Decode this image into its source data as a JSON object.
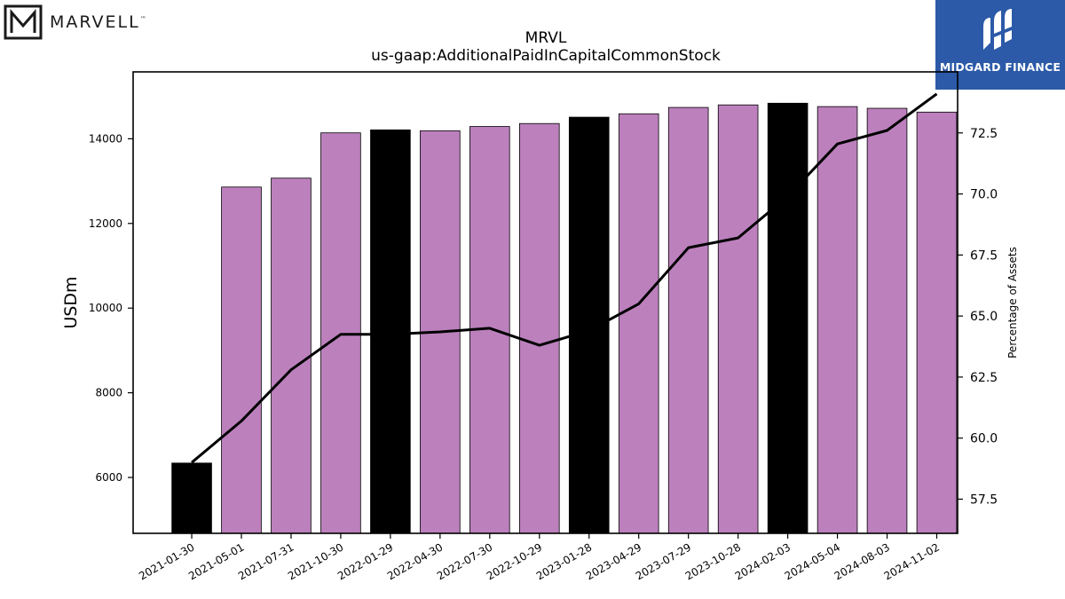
{
  "logos": {
    "left_text": "MARVELL",
    "left_tm": "™",
    "right_text": "MIDGARD FINANCE",
    "right_bg": "#2c5aa8"
  },
  "chart_data": {
    "type": "bar",
    "title": "MRVL",
    "subtitle": "us-gaap:AdditionalPaidInCapitalCommonStock",
    "ylabel": "USDm",
    "y2label": "Percentage of Assets",
    "ylim": [
      4680,
      15580
    ],
    "y2lim": [
      56.1,
      75.0
    ],
    "yticks": [
      6000,
      8000,
      10000,
      12000,
      14000
    ],
    "y2ticks": [
      57.5,
      60.0,
      62.5,
      65.0,
      67.5,
      70.0,
      72.5
    ],
    "grid": false,
    "categories": [
      "2021-01-30",
      "2021-05-01",
      "2021-07-31",
      "2021-10-30",
      "2022-01-29",
      "2022-04-30",
      "2022-07-30",
      "2022-10-29",
      "2023-01-28",
      "2023-04-29",
      "2023-07-29",
      "2023-10-28",
      "2024-02-03",
      "2024-05-04",
      "2024-08-03",
      "2024-11-02"
    ],
    "series": [
      {
        "type": "bar",
        "values": [
          6340,
          12860,
          13070,
          14140,
          14210,
          14190,
          14290,
          14360,
          14510,
          14590,
          14740,
          14800,
          14840,
          14760,
          14720,
          14630
        ],
        "colors": [
          "#000000",
          "#bc80bd",
          "#bc80bd",
          "#bc80bd",
          "#000000",
          "#bc80bd",
          "#bc80bd",
          "#bc80bd",
          "#000000",
          "#bc80bd",
          "#bc80bd",
          "#bc80bd",
          "#000000",
          "#bc80bd",
          "#bc80bd",
          "#bc80bd"
        ]
      },
      {
        "type": "line",
        "axis": "right",
        "color": "#000000",
        "values": [
          59.0,
          60.7,
          62.8,
          64.25,
          64.25,
          64.35,
          64.5,
          63.8,
          64.4,
          65.5,
          67.8,
          68.2,
          69.9,
          72.05,
          72.6,
          74.1
        ]
      }
    ]
  }
}
